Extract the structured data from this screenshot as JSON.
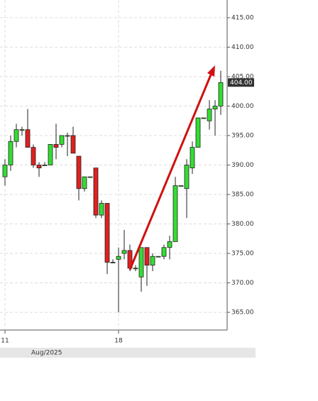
{
  "chart_data": {
    "type": "candlestick",
    "categories": [
      "11",
      null,
      null,
      null,
      null,
      null,
      null,
      null,
      null,
      null,
      null,
      null,
      null,
      null,
      null,
      null,
      null,
      null,
      null,
      null,
      "18",
      null,
      null,
      null,
      null,
      null,
      null,
      null,
      null,
      null,
      null,
      null,
      null,
      null,
      null,
      null,
      null,
      null,
      null
    ],
    "open": [
      388,
      390,
      394,
      396,
      396,
      393,
      390,
      390,
      390,
      393.5,
      393.5,
      395,
      395,
      391.5,
      386,
      388,
      389.5,
      381.5,
      383.5,
      373.5,
      374,
      375,
      375.5,
      372.5,
      371,
      376,
      373,
      374.5,
      374.5,
      376,
      377,
      386.5,
      386,
      389.5,
      393,
      398,
      397.5,
      399.5,
      400
    ],
    "high": [
      391,
      395,
      397,
      396.5,
      399.5,
      393.5,
      390.5,
      390.5,
      393.5,
      397,
      395,
      395.5,
      396.5,
      391.5,
      388,
      388,
      389.5,
      384,
      383.5,
      374,
      376,
      379,
      376.5,
      373,
      376,
      376,
      375,
      374.5,
      376.5,
      378,
      388,
      386.5,
      391,
      394,
      398,
      398,
      401,
      401,
      406
    ],
    "low": [
      386.5,
      389,
      393,
      395,
      393,
      389.5,
      388,
      390,
      390,
      391,
      393,
      391.5,
      392,
      384,
      385.5,
      388,
      381,
      381,
      371.5,
      373.5,
      365,
      374,
      372,
      372,
      368.5,
      369.5,
      372,
      374.5,
      374,
      374,
      377,
      386.5,
      381,
      388.5,
      393,
      398,
      396,
      395,
      398.5
    ],
    "close": [
      390,
      394,
      396,
      396,
      393,
      390,
      389.5,
      390,
      393.5,
      393,
      395,
      395,
      392,
      386,
      388,
      388,
      381.5,
      383.5,
      373.5,
      373.5,
      374.5,
      375.5,
      372.5,
      372.5,
      376,
      373,
      374.5,
      374.5,
      376,
      377,
      386.5,
      386.5,
      390,
      393,
      398,
      398,
      399.5,
      400,
      404
    ],
    "up_color": "#33dd33",
    "down_color": "#e02020",
    "ylim": [
      362,
      418
    ],
    "yticks": [
      {
        "value": 365,
        "label": "365.00"
      },
      {
        "value": 370,
        "label": "370.00"
      },
      {
        "value": 375,
        "label": "375.00"
      },
      {
        "value": 380,
        "label": "380.00"
      },
      {
        "value": 385,
        "label": "385.00"
      },
      {
        "value": 390,
        "label": "390.00"
      },
      {
        "value": 395,
        "label": "395.00"
      },
      {
        "value": 400,
        "label": "400.00"
      },
      {
        "value": 405,
        "label": "405.00"
      },
      {
        "value": 410,
        "label": "410.00"
      },
      {
        "value": 415,
        "label": "415.00"
      }
    ],
    "last_price": {
      "value": 404,
      "label": "404.00"
    },
    "period_label": "Aug/2025",
    "grid": true
  }
}
